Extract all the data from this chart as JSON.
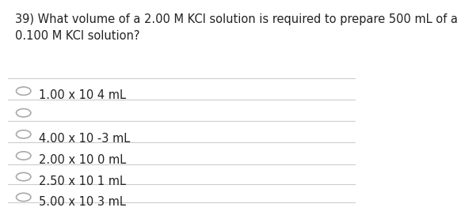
{
  "question": "39) What volume of a 2.00 M KCl solution is required to prepare 500 mL of a\n0.100 M KCl solution?",
  "options": [
    "1.00 x 10 4 mL",
    "",
    "4.00 x 10 -3 mL",
    "2.00 x 10 0 mL",
    "2.50 x 10 1 mL",
    "5.00 x 10 3 mL"
  ],
  "show_circle": [
    true,
    true,
    true,
    true,
    true,
    true
  ],
  "bg_color": "#ffffff",
  "text_color": "#222222",
  "line_color": "#cccccc",
  "circle_color": "#aaaaaa",
  "font_size": 10.5,
  "option_font_size": 10.5,
  "fig_width": 5.65,
  "fig_height": 3.2
}
